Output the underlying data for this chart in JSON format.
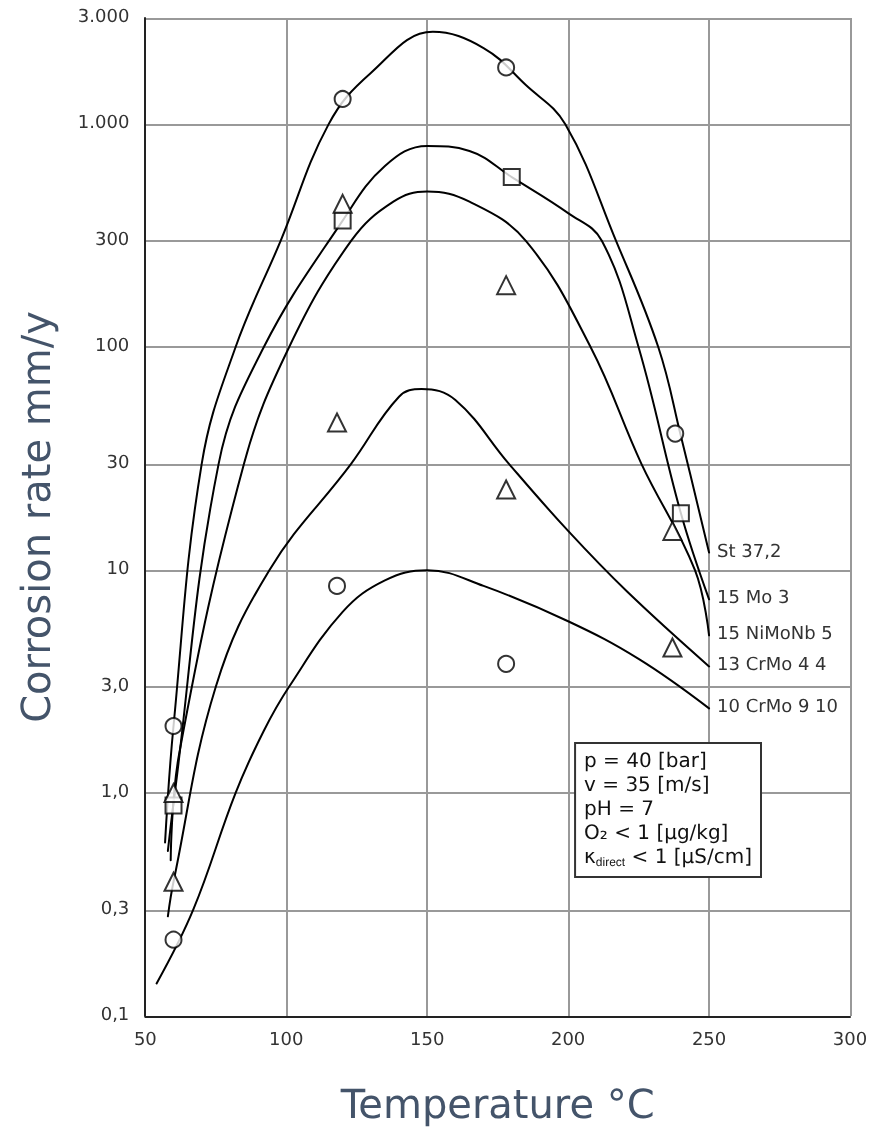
{
  "chart_data": {
    "type": "line",
    "xlabel": "Temperature °C",
    "ylabel": "Corrosion rate mm/y",
    "xlim": [
      50,
      300
    ],
    "xticks": [
      50,
      100,
      150,
      200,
      250,
      300
    ],
    "ylim": [
      0.1,
      3000
    ],
    "yticks": [
      {
        "value": 0.1,
        "label": "0,1"
      },
      {
        "value": 0.3,
        "label": "0,3"
      },
      {
        "value": 1,
        "label": "1,0"
      },
      {
        "value": 3,
        "label": "3,0"
      },
      10,
      30,
      100,
      300,
      {
        "value": 1000,
        "label": "1.000"
      },
      {
        "value": 3000,
        "label": "3.000"
      }
    ],
    "log": true,
    "grid": true,
    "marker": "none",
    "line_style": "solid",
    "series": [
      {
        "name": "St 37,2",
        "color": "#000000",
        "x": [
          57,
          60,
          70,
          82,
          98,
          115,
          130,
          152,
          170,
          185,
          199,
          217,
          232,
          240,
          250
        ],
        "values": [
          0.6,
          2,
          30,
          100,
          300,
          1000,
          1700,
          2600,
          2200,
          1500,
          1000,
          300,
          100,
          40,
          12
        ]
      },
      {
        "name": "15 Mo 3",
        "color": "#000000",
        "x": [
          58,
          60,
          76,
          92,
          120,
          135,
          150,
          165,
          180,
          200,
          212,
          225,
          240,
          250
        ],
        "values": [
          0.55,
          0.9,
          30,
          100,
          370,
          650,
          800,
          760,
          580,
          400,
          300,
          100,
          18,
          7.4
        ]
      },
      {
        "name": "15 NiMoNb 5",
        "color": "#000000",
        "x": [
          59,
          62,
          85,
          101,
          123,
          138,
          150,
          165,
          185,
          208,
          226,
          245,
          250
        ],
        "values": [
          0.5,
          1.5,
          30,
          100,
          300,
          450,
          500,
          450,
          300,
          100,
          30,
          10,
          5.1
        ]
      },
      {
        "name": "13 CrMo 4 4",
        "color": "#000000",
        "x": [
          58,
          60,
          75,
          94,
          123,
          140,
          148,
          160,
          179,
          200,
          221,
          250
        ],
        "values": [
          0.28,
          0.4,
          3,
          10,
          30,
          60,
          65,
          58,
          30,
          15,
          8,
          3.7
        ]
      },
      {
        "name": "10 CrMo 9 10",
        "color": "#000000",
        "x": [
          54,
          67,
          82,
          92,
          101,
          120,
          135,
          150,
          170,
          200,
          225,
          250
        ],
        "values": [
          0.14,
          0.3,
          1,
          1.9,
          3,
          6.5,
          9,
          10,
          8.5,
          5.9,
          4,
          2.4
        ]
      },
      {
        "type": "scatter",
        "marker": "circle",
        "color": "#000000",
        "x": [
          60,
          120,
          178,
          238,
          118,
          178,
          60
        ],
        "values": [
          2,
          1300,
          1800,
          41,
          8.5,
          3.8,
          0.22
        ]
      },
      {
        "type": "scatter",
        "marker": "square",
        "color": "#000000",
        "x": [
          120,
          180,
          240,
          60
        ],
        "values": [
          370,
          580,
          18,
          0.88
        ]
      },
      {
        "type": "scatter",
        "marker": "triangle",
        "color": "#000000",
        "x": [
          120,
          178,
          118,
          178,
          237,
          237,
          60,
          60
        ],
        "values": [
          440,
          190,
          46,
          23,
          15,
          4.5,
          1,
          0.4
        ]
      }
    ],
    "annotations": [
      "p = 40 [bar]\nv = 35 [m/s]\npH = 7\nO₂ < 1 [µg/kg]\nκ$_{direct}$ < 1 [µS/cm]"
    ]
  }
}
